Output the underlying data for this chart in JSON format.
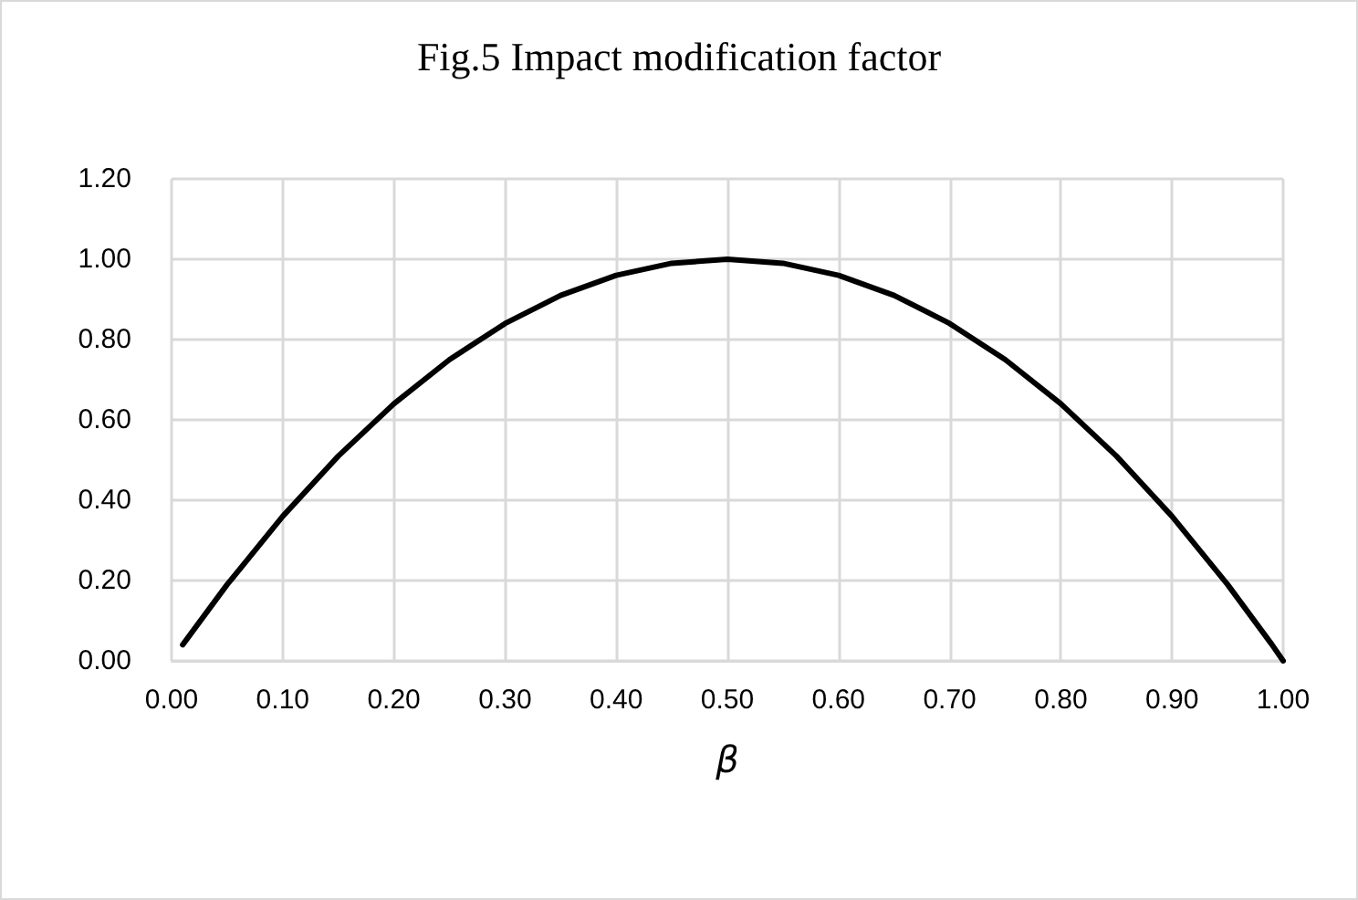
{
  "chart_data": {
    "type": "line",
    "title": "Fig.5 Impact modification factor",
    "xlabel": "β",
    "x": [
      0.01,
      0.05,
      0.1,
      0.15,
      0.2,
      0.25,
      0.3,
      0.35,
      0.4,
      0.45,
      0.5,
      0.55,
      0.6,
      0.65,
      0.7,
      0.75,
      0.8,
      0.85,
      0.9,
      0.95,
      0.99,
      1.0
    ],
    "series": [
      {
        "color": "#000000",
        "values": [
          0.04,
          0.19,
          0.36,
          0.51,
          0.64,
          0.75,
          0.84,
          0.91,
          0.96,
          0.99,
          1.0,
          0.99,
          0.96,
          0.91,
          0.84,
          0.75,
          0.64,
          0.51,
          0.36,
          0.19,
          0.04,
          0.0
        ]
      }
    ],
    "xlim": [
      0,
      1
    ],
    "xticks": [
      {
        "value": 0,
        "label": "0.00"
      },
      {
        "value": 0.1,
        "label": "0.10"
      },
      {
        "value": 0.2,
        "label": "0.20"
      },
      {
        "value": 0.3,
        "label": "0.30"
      },
      {
        "value": 0.4,
        "label": "0.40"
      },
      {
        "value": 0.5,
        "label": "0.50"
      },
      {
        "value": 0.6,
        "label": "0.60"
      },
      {
        "value": 0.7,
        "label": "0.70"
      },
      {
        "value": 0.8,
        "label": "0.80"
      },
      {
        "value": 0.9,
        "label": "0.90"
      },
      {
        "value": 1,
        "label": "1.00"
      }
    ],
    "ylim": [
      0,
      1.2
    ],
    "yticks": [
      {
        "value": 0,
        "label": "0.00"
      },
      {
        "value": 0.2,
        "label": "0.20"
      },
      {
        "value": 0.4,
        "label": "0.40"
      },
      {
        "value": 0.6,
        "label": "0.60"
      },
      {
        "value": 0.8,
        "label": "0.80"
      },
      {
        "value": 1,
        "label": "1.00"
      },
      {
        "value": 1.2,
        "label": "1.20"
      }
    ],
    "grid": true,
    "marker": "none",
    "line_style": "solid"
  }
}
